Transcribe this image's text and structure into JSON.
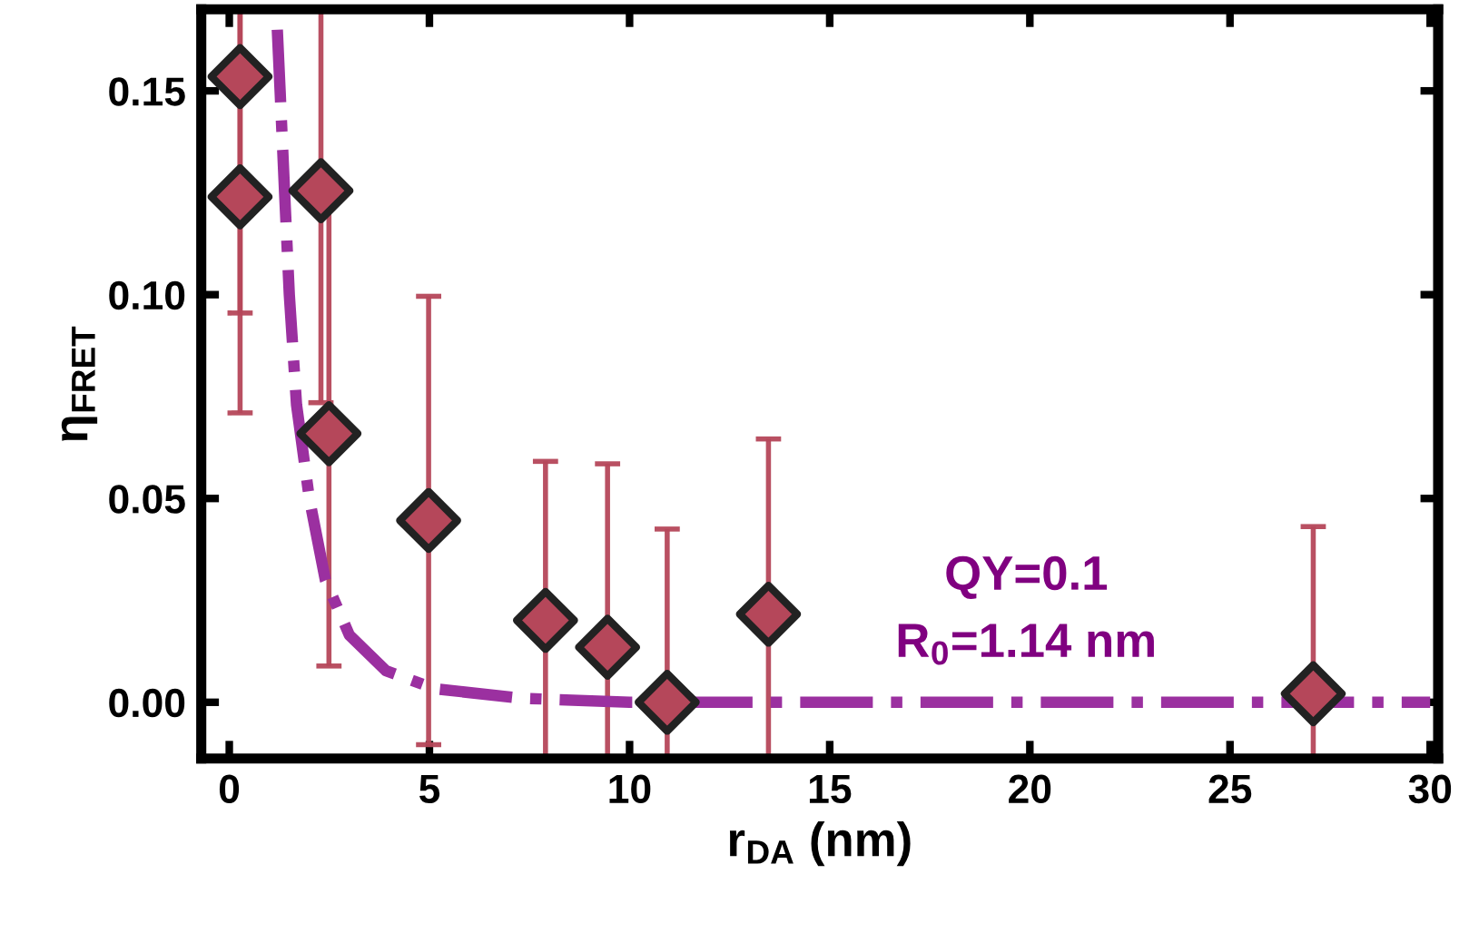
{
  "chart_data": {
    "type": "scatter",
    "xlabel": "r$_{DA}$ (nm)",
    "ylabel": "η$_{FRET}$",
    "xlim": [
      -0.7,
      30.2
    ],
    "ylim": [
      -0.0138,
      0.17
    ],
    "xticks": [
      0,
      5,
      10,
      15,
      20,
      25,
      30
    ],
    "yticks": [
      {
        "value": 0,
        "label": "0.00"
      },
      {
        "value": 0.05,
        "label": "0.05"
      },
      {
        "value": 0.1,
        "label": "0.10"
      },
      {
        "value": 0.15,
        "label": "0.15"
      }
    ],
    "grid": false,
    "legend": false,
    "series": [
      {
        "color": "#b5475a",
        "marker": "diamond",
        "x": [
          0.27,
          0.27,
          2.29,
          2.49,
          4.98,
          7.9,
          9.45,
          10.94,
          13.47,
          27.08
        ],
        "values": [
          0.1535,
          0.124,
          0.1255,
          0.0659,
          0.0446,
          0.0201,
          0.0135,
          0.0,
          0.0216,
          0.0021
        ],
        "errors": [
          [
            0.0955,
            0.17
          ],
          [
            0.071,
            0.17
          ],
          [
            0.0735,
            0.17
          ],
          0.057,
          0.055,
          0.039,
          0.045,
          0.0425,
          0.043,
          0.041
        ]
      },
      {
        "type": "line",
        "color": "#9b30a0",
        "line_style": "dashdot",
        "x": [
          1.2,
          1.27,
          1.38,
          1.5,
          1.68,
          2.0,
          2.4,
          3.0,
          3.92,
          5.14,
          7.3,
          10,
          15,
          20,
          25,
          30
        ],
        "values": [
          0.165,
          0.15,
          0.1255,
          0.1,
          0.073,
          0.05,
          0.03,
          0.0165,
          0.0077,
          0.0033,
          0.001,
          0.0,
          0.0,
          0.0,
          0.0,
          0.0
        ]
      }
    ],
    "annotations": [
      "QY=0.1",
      "R$_{0}$=1.14 nm"
    ]
  }
}
